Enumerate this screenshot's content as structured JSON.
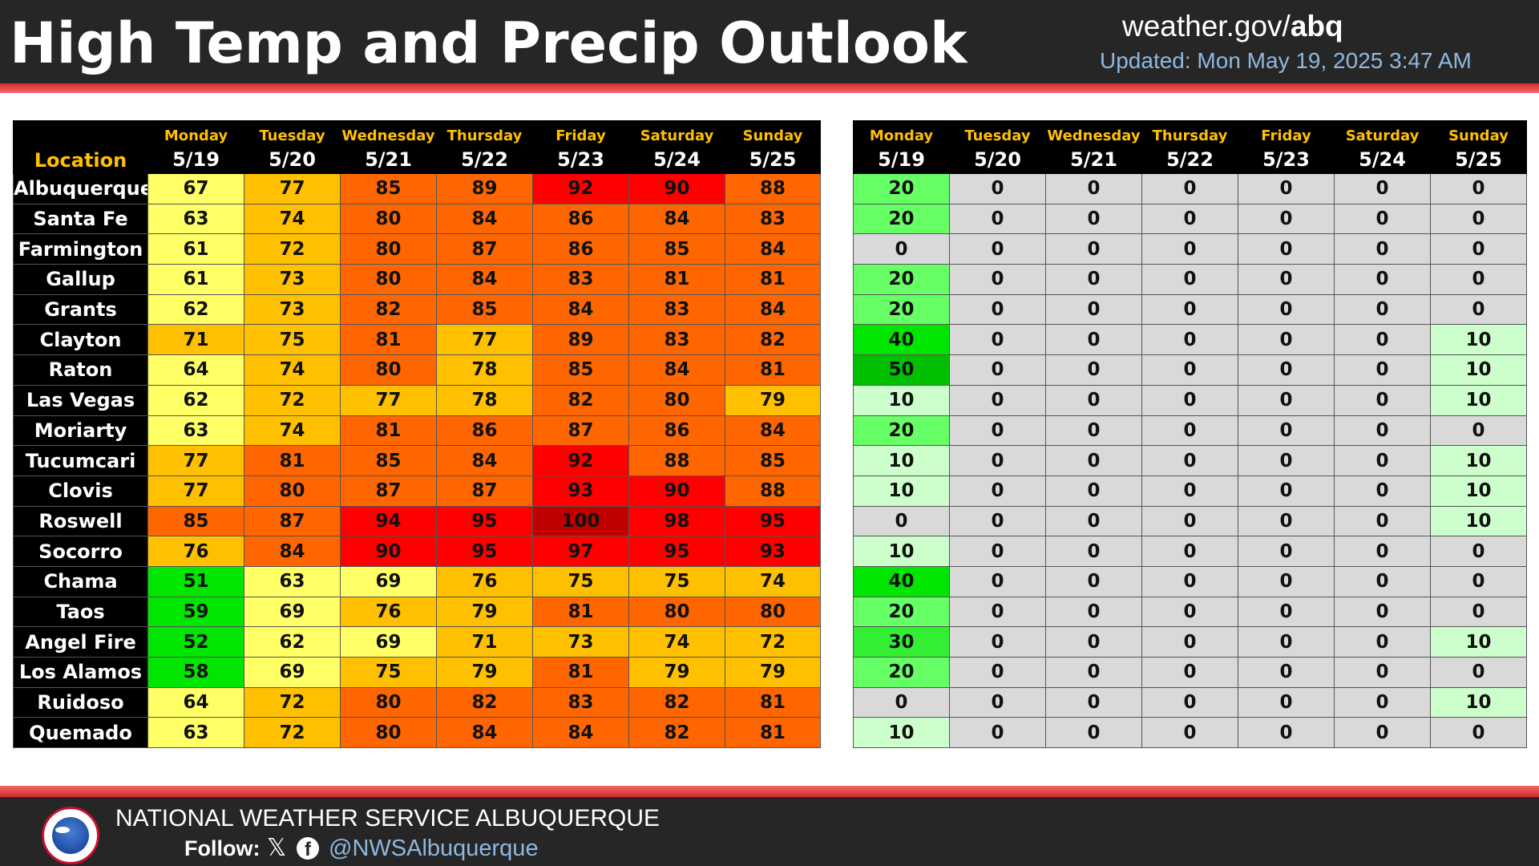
{
  "header": {
    "title": "High Temp and Precip Outlook",
    "site_prefix": "weather.gov/",
    "site_bold": "abq",
    "updated": "Updated: Mon May 19, 2025 3:47 AM"
  },
  "location_header": "Location",
  "days": [
    {
      "name": "Monday",
      "date": "5/19"
    },
    {
      "name": "Tuesday",
      "date": "5/20"
    },
    {
      "name": "Wednesday",
      "date": "5/21"
    },
    {
      "name": "Thursday",
      "date": "5/22"
    },
    {
      "name": "Friday",
      "date": "5/23"
    },
    {
      "name": "Saturday",
      "date": "5/24"
    },
    {
      "name": "Sunday",
      "date": "5/25"
    }
  ],
  "rows": [
    {
      "location": "Albuquerque",
      "temps": [
        67,
        77,
        85,
        89,
        92,
        90,
        88
      ],
      "precip": [
        20,
        0,
        0,
        0,
        0,
        0,
        0
      ]
    },
    {
      "location": "Santa Fe",
      "temps": [
        63,
        74,
        80,
        84,
        86,
        84,
        83
      ],
      "precip": [
        20,
        0,
        0,
        0,
        0,
        0,
        0
      ]
    },
    {
      "location": "Farmington",
      "temps": [
        61,
        72,
        80,
        87,
        86,
        85,
        84
      ],
      "precip": [
        0,
        0,
        0,
        0,
        0,
        0,
        0
      ]
    },
    {
      "location": "Gallup",
      "temps": [
        61,
        73,
        80,
        84,
        83,
        81,
        81
      ],
      "precip": [
        20,
        0,
        0,
        0,
        0,
        0,
        0
      ]
    },
    {
      "location": "Grants",
      "temps": [
        62,
        73,
        82,
        85,
        84,
        83,
        84
      ],
      "precip": [
        20,
        0,
        0,
        0,
        0,
        0,
        0
      ]
    },
    {
      "location": "Clayton",
      "temps": [
        71,
        75,
        81,
        77,
        89,
        83,
        82
      ],
      "precip": [
        40,
        0,
        0,
        0,
        0,
        0,
        10
      ]
    },
    {
      "location": "Raton",
      "temps": [
        64,
        74,
        80,
        78,
        85,
        84,
        81
      ],
      "precip": [
        50,
        0,
        0,
        0,
        0,
        0,
        10
      ]
    },
    {
      "location": "Las Vegas",
      "temps": [
        62,
        72,
        77,
        78,
        82,
        80,
        79
      ],
      "precip": [
        10,
        0,
        0,
        0,
        0,
        0,
        10
      ]
    },
    {
      "location": "Moriarty",
      "temps": [
        63,
        74,
        81,
        86,
        87,
        86,
        84
      ],
      "precip": [
        20,
        0,
        0,
        0,
        0,
        0,
        0
      ]
    },
    {
      "location": "Tucumcari",
      "temps": [
        77,
        81,
        85,
        84,
        92,
        88,
        85
      ],
      "precip": [
        10,
        0,
        0,
        0,
        0,
        0,
        10
      ]
    },
    {
      "location": "Clovis",
      "temps": [
        77,
        80,
        87,
        87,
        93,
        90,
        88
      ],
      "precip": [
        10,
        0,
        0,
        0,
        0,
        0,
        10
      ]
    },
    {
      "location": "Roswell",
      "temps": [
        85,
        87,
        94,
        95,
        100,
        98,
        95
      ],
      "precip": [
        0,
        0,
        0,
        0,
        0,
        0,
        10
      ]
    },
    {
      "location": "Socorro",
      "temps": [
        76,
        84,
        90,
        95,
        97,
        95,
        93
      ],
      "precip": [
        10,
        0,
        0,
        0,
        0,
        0,
        0
      ]
    },
    {
      "location": "Chama",
      "temps": [
        51,
        63,
        69,
        76,
        75,
        75,
        74
      ],
      "precip": [
        40,
        0,
        0,
        0,
        0,
        0,
        0
      ]
    },
    {
      "location": "Taos",
      "temps": [
        59,
        69,
        76,
        79,
        81,
        80,
        80
      ],
      "precip": [
        20,
        0,
        0,
        0,
        0,
        0,
        0
      ]
    },
    {
      "location": "Angel Fire",
      "temps": [
        52,
        62,
        69,
        71,
        73,
        74,
        72
      ],
      "precip": [
        30,
        0,
        0,
        0,
        0,
        0,
        10
      ]
    },
    {
      "location": "Los Alamos",
      "temps": [
        58,
        69,
        75,
        79,
        81,
        79,
        79
      ],
      "precip": [
        20,
        0,
        0,
        0,
        0,
        0,
        0
      ]
    },
    {
      "location": "Ruidoso",
      "temps": [
        64,
        72,
        80,
        82,
        83,
        82,
        81
      ],
      "precip": [
        0,
        0,
        0,
        0,
        0,
        0,
        10
      ]
    },
    {
      "location": "Quemado",
      "temps": [
        63,
        72,
        80,
        84,
        84,
        82,
        81
      ],
      "precip": [
        10,
        0,
        0,
        0,
        0,
        0,
        0
      ]
    }
  ],
  "temp_colors": {
    "below_60": "#00e600",
    "60_69": "#ffff66",
    "70_79": "#ffc000",
    "80_89": "#ff6600",
    "90_99": "#ff0000",
    "100_plus": "#c00000"
  },
  "precip_colors": {
    "0": "#d9d9d9",
    "10": "#ccffcc",
    "20": "#66ff66",
    "30": "#33ee33",
    "40": "#00e600",
    "50": "#00c000"
  },
  "footer": {
    "org": "NATIONAL WEATHER SERVICE ALBUQUERQUE",
    "follow": "Follow:",
    "x_icon": "𝕏",
    "fb_icon": "f",
    "handle": "@NWSAlbuquerque"
  }
}
